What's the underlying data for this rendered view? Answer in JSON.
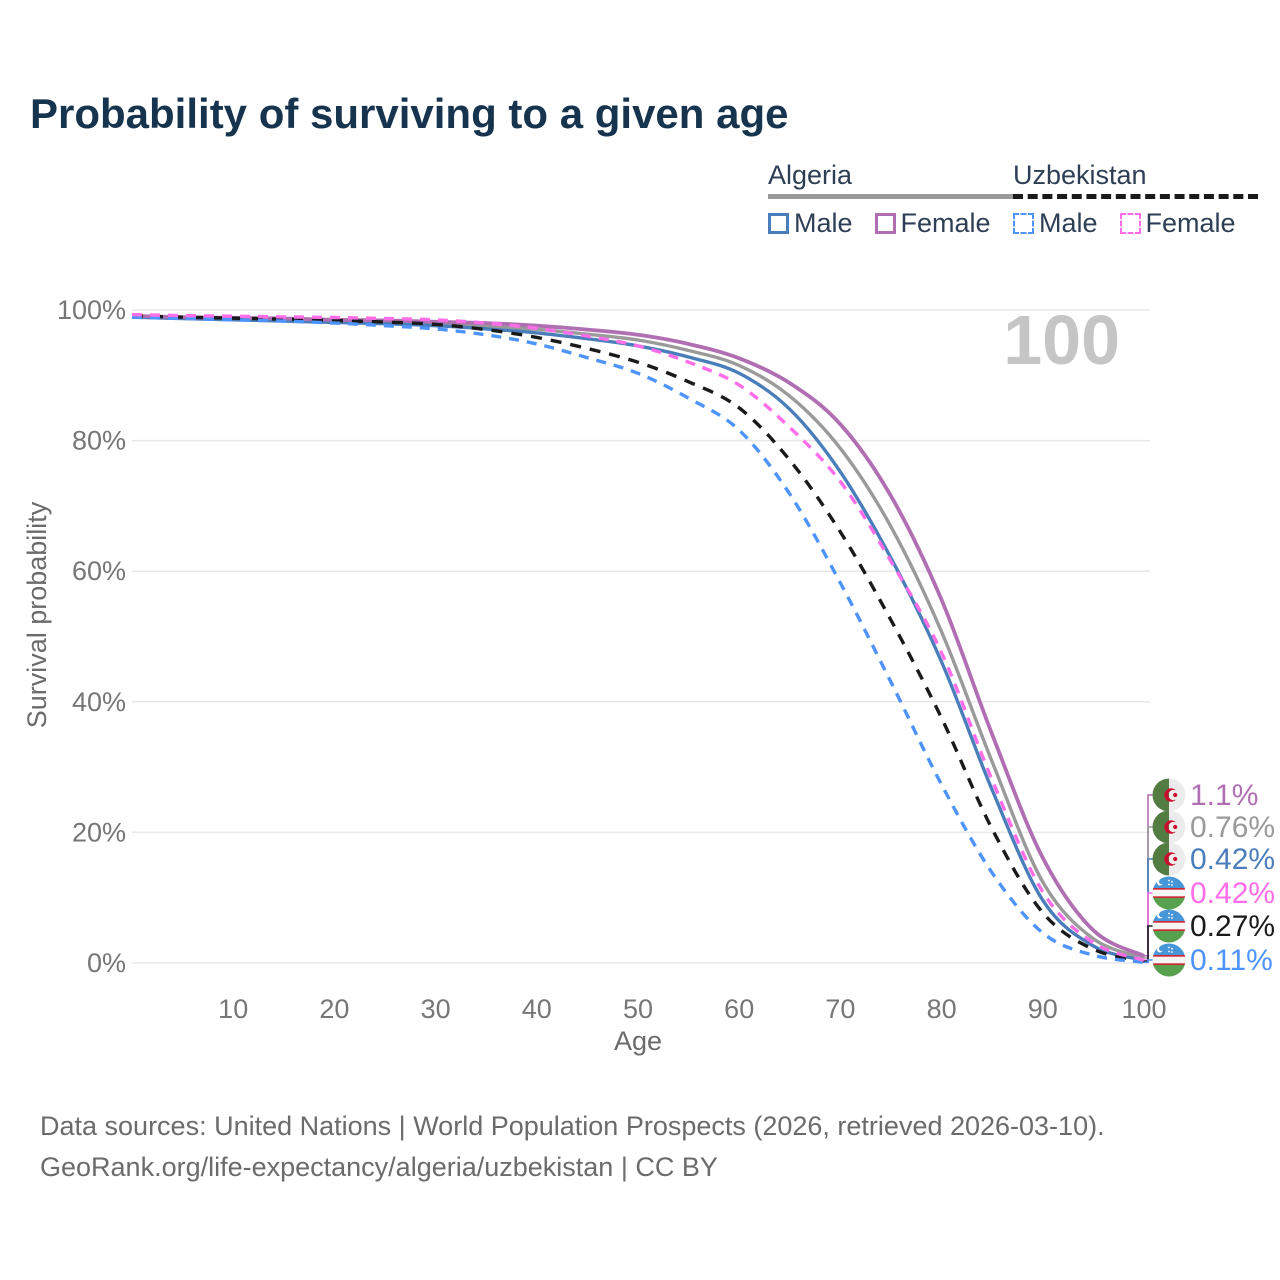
{
  "title": "Probability of surviving to a given age",
  "watermark": "100",
  "legend": {
    "groups": [
      {
        "label": "Algeria",
        "line_style": "solid",
        "underline_color": "#9a9a9a",
        "items": [
          {
            "label": "Male",
            "color": "#4a7ebb"
          },
          {
            "label": "Female",
            "color": "#b06fb2"
          }
        ]
      },
      {
        "label": "Uzbekistan",
        "line_style": "dashed",
        "underline_color": "#1a1a1a",
        "items": [
          {
            "label": "Male",
            "color": "#4d94ff"
          },
          {
            "label": "Female",
            "color": "#ff6ee8"
          }
        ]
      }
    ]
  },
  "chart_data": {
    "type": "line",
    "title": "Probability of surviving to a given age",
    "xlabel": "Age",
    "ylabel": "Survival probability",
    "xlim": [
      0,
      100
    ],
    "ylim": [
      0,
      100
    ],
    "grid": "horizontal",
    "x_ticks": [
      10,
      20,
      30,
      40,
      50,
      60,
      70,
      80,
      90,
      100
    ],
    "y_ticks": [
      0,
      20,
      40,
      60,
      80,
      100
    ],
    "y_tick_labels": [
      "0%",
      "20%",
      "40%",
      "60%",
      "80%",
      "100%"
    ],
    "watermark": "100",
    "ages": [
      0,
      5,
      10,
      15,
      20,
      25,
      30,
      35,
      40,
      45,
      50,
      55,
      60,
      65,
      70,
      75,
      80,
      85,
      90,
      95,
      100
    ],
    "series": [
      {
        "name": "Algeria Female",
        "country": "algeria",
        "sex": "Female",
        "color": "#b06fb2",
        "dash": false,
        "end_label": "1.1%",
        "end_label_color": "#b06fb2",
        "values": [
          99.1,
          98.9,
          98.8,
          98.7,
          98.5,
          98.4,
          98.2,
          98.0,
          97.6,
          97.0,
          96.2,
          94.8,
          92.6,
          88.8,
          82.5,
          71.5,
          55.6,
          35.0,
          16.1,
          5.0,
          1.1
        ]
      },
      {
        "name": "Algeria Both sexes",
        "country": "algeria",
        "sex": "Both",
        "color": "#9a9a9a",
        "dash": false,
        "end_label": "0.76%",
        "end_label_color": "#9a9a9a",
        "values": [
          99.0,
          98.8,
          98.65,
          98.5,
          98.3,
          98.15,
          97.9,
          97.55,
          97.05,
          96.3,
          95.4,
          93.8,
          91.5,
          86.8,
          78.8,
          66.8,
          50.7,
          30.8,
          12.4,
          3.7,
          0.76
        ]
      },
      {
        "name": "Algeria Male",
        "country": "algeria",
        "sex": "Male",
        "color": "#4a7ebb",
        "dash": false,
        "end_label": "0.42%",
        "end_label_color": "#4a7ebb",
        "values": [
          98.9,
          98.7,
          98.5,
          98.3,
          98.1,
          97.9,
          97.6,
          97.1,
          96.5,
          95.6,
          94.5,
          92.8,
          90.3,
          84.8,
          75.2,
          62.0,
          46.1,
          26.5,
          9.6,
          2.6,
          0.42
        ]
      },
      {
        "name": "Uzbekistan Female",
        "country": "uzbekistan",
        "sex": "Female",
        "color": "#ff6ee8",
        "dash": true,
        "end_label": "0.42%",
        "end_label_color": "#ff6ee8",
        "values": [
          99.3,
          99.15,
          99.05,
          98.95,
          98.85,
          98.7,
          98.5,
          98.0,
          97.2,
          96.0,
          94.5,
          92.0,
          88.5,
          82.0,
          73.7,
          61.5,
          47.5,
          28.0,
          10.9,
          3.1,
          0.42
        ]
      },
      {
        "name": "Uzbekistan Both sexes",
        "country": "uzbekistan",
        "sex": "Both",
        "color": "#1a1a1a",
        "dash": true,
        "end_label": "0.27%",
        "end_label_color": "#1a1a1a",
        "values": [
          99.1,
          98.9,
          98.75,
          98.6,
          98.4,
          98.15,
          97.8,
          97.0,
          95.8,
          94.1,
          92.0,
          89.0,
          85.0,
          77.0,
          66.0,
          52.5,
          37.5,
          20.5,
          7.7,
          2.1,
          0.27
        ]
      },
      {
        "name": "Uzbekistan Male",
        "country": "uzbekistan",
        "sex": "Male",
        "color": "#4d94ff",
        "dash": true,
        "end_label": "0.11%",
        "end_label_color": "#4d94ff",
        "values": [
          98.9,
          98.7,
          98.5,
          98.3,
          98.0,
          97.6,
          97.1,
          96.2,
          94.8,
          92.7,
          90.3,
          86.5,
          81.6,
          71.8,
          58.2,
          43.0,
          27.3,
          13.8,
          4.6,
          1.2,
          0.11
        ]
      }
    ]
  },
  "footer": {
    "line1": "Data sources: United Nations | World Population Prospects (2026, retrieved 2026-03-10).",
    "line2": "GeoRank.org/life-expectancy/algeria/uzbekistan | CC BY"
  }
}
